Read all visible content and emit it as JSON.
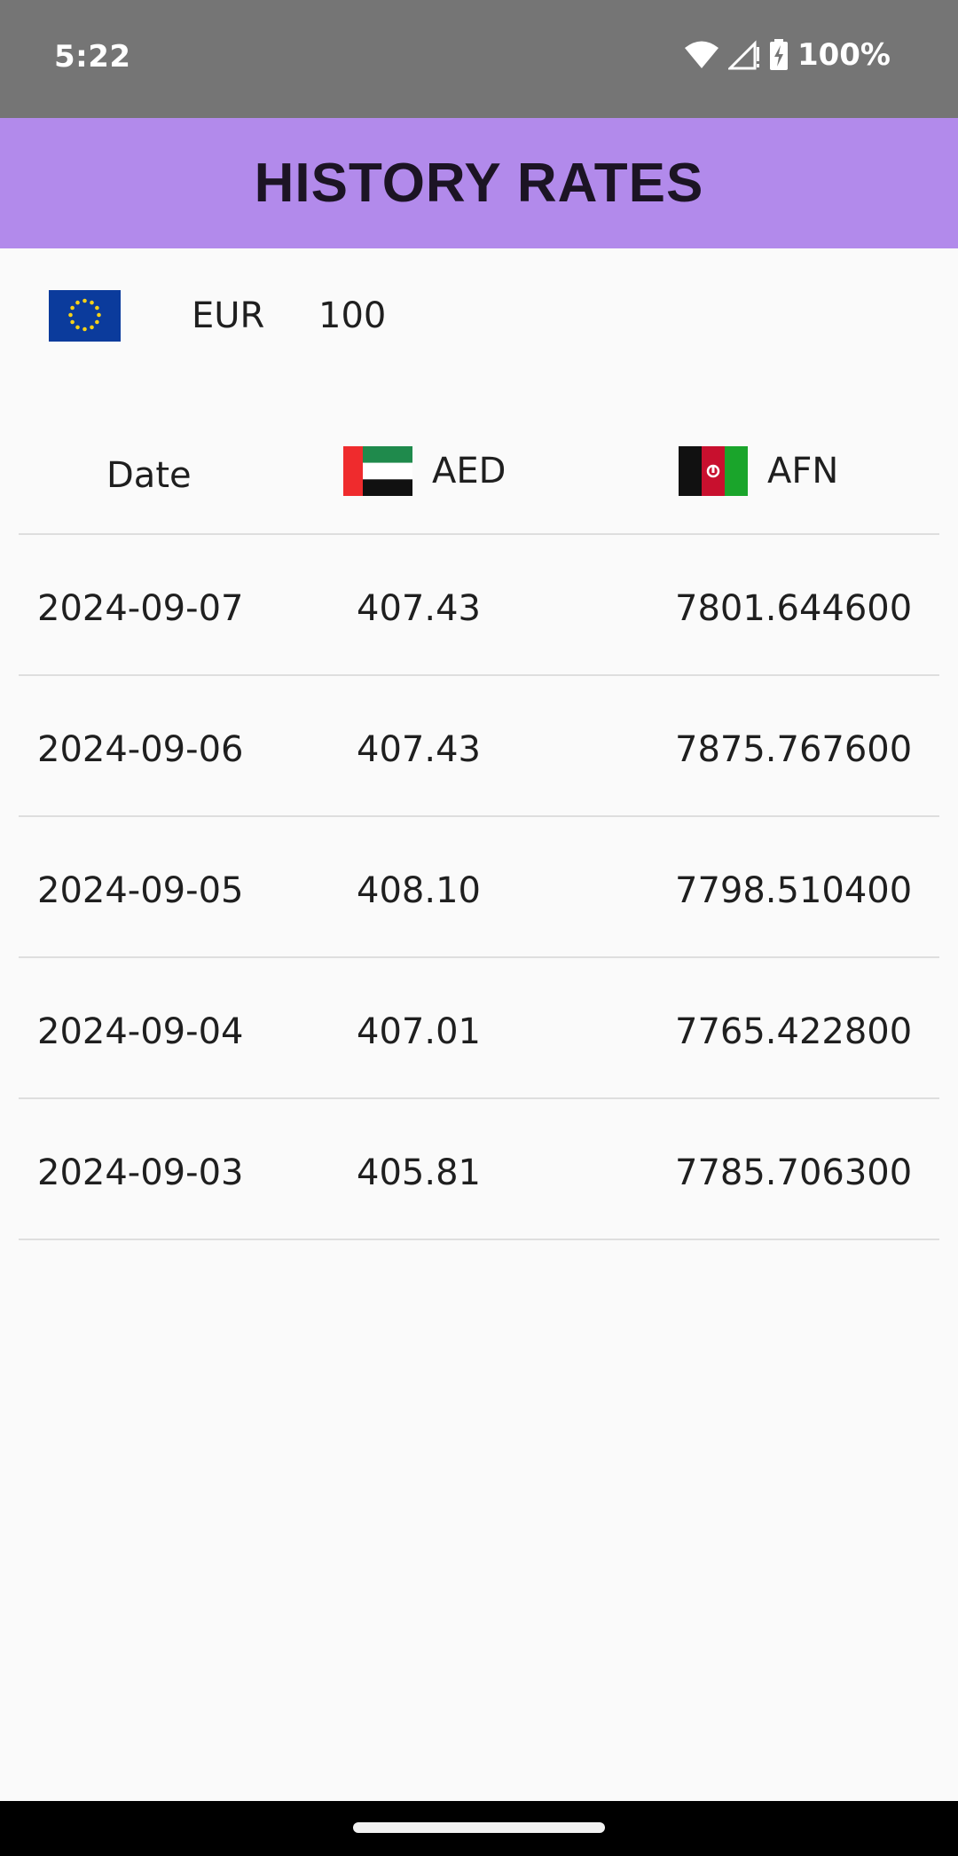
{
  "status_bar": {
    "time": "5:22",
    "battery": "100%",
    "icons": [
      "wifi-icon",
      "signal-icon",
      "battery-charging-icon"
    ]
  },
  "app_bar": {
    "title": "HISTORY RATES",
    "color": "#b28aeb"
  },
  "base": {
    "flag": "eu-flag-icon",
    "code": "EUR",
    "amount": "100"
  },
  "table": {
    "headers": {
      "date": "Date",
      "col1": {
        "flag": "uae-flag-icon",
        "code": "AED"
      },
      "col2": {
        "flag": "afghanistan-flag-icon",
        "code": "AFN"
      }
    },
    "rows": [
      {
        "date": "2024-09-07",
        "aed": "407.43",
        "afn": "7801.644600"
      },
      {
        "date": "2024-09-06",
        "aed": "407.43",
        "afn": "7875.767600"
      },
      {
        "date": "2024-09-05",
        "aed": "408.10",
        "afn": "7798.510400"
      },
      {
        "date": "2024-09-04",
        "aed": "407.01",
        "afn": "7765.422800"
      },
      {
        "date": "2024-09-03",
        "aed": "405.81",
        "afn": "7785.706300"
      }
    ]
  }
}
